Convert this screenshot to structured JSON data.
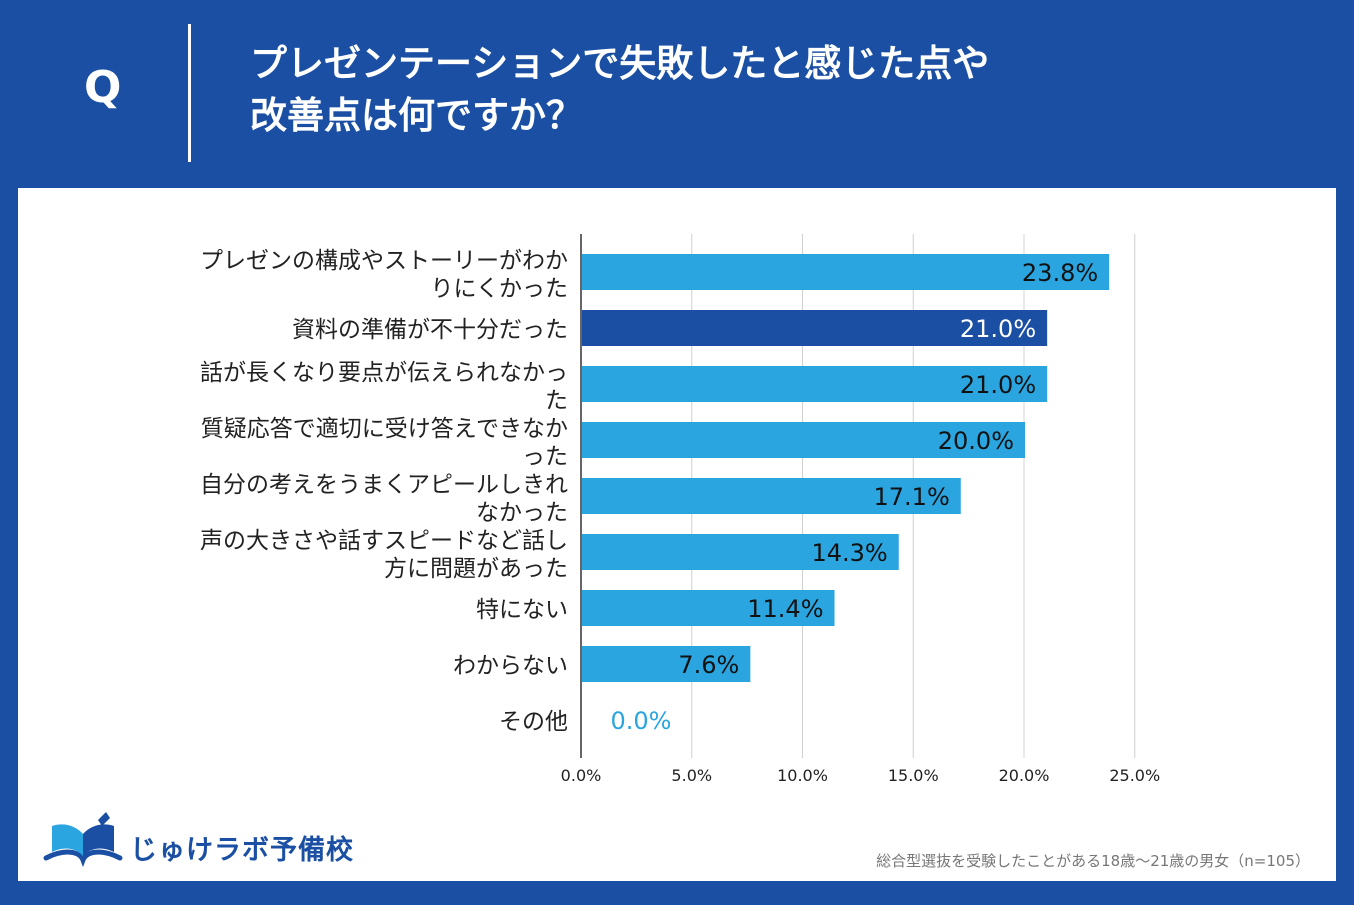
{
  "header": {
    "q_label": "Q",
    "question_line1": "プレゼンテーションで失敗したと感じた点や",
    "question_line2": "改善点は何ですか？"
  },
  "colors": {
    "background": "#1a4fa3",
    "bar_light": "#2aa5e0",
    "bar_highlight": "#1a4fa3",
    "grid": "#d0d0d0"
  },
  "chart_data": {
    "type": "bar",
    "orientation": "horizontal",
    "categories": [
      [
        "プレゼンの構成やストーリーがわか",
        "りにくかった"
      ],
      [
        "資料の準備が不十分だった"
      ],
      [
        "話が長くなり要点が伝えられなかっ",
        "た"
      ],
      [
        "質疑応答で適切に受け答えできなか",
        "った"
      ],
      [
        "自分の考えをうまくアピールしきれ",
        "なかった"
      ],
      [
        "声の大きさや話すスピードなど話し",
        "方に問題があった"
      ],
      [
        "特にない"
      ],
      [
        "わからない"
      ],
      [
        "その他"
      ]
    ],
    "values": [
      23.8,
      21.0,
      21.0,
      20.0,
      17.1,
      14.3,
      11.4,
      7.6,
      0.0
    ],
    "value_labels": [
      "23.8%",
      "21.0%",
      "21.0%",
      "20.0%",
      "17.1%",
      "14.3%",
      "11.4%",
      "7.6%",
      "0.0%"
    ],
    "highlight_index": 1,
    "x_ticks": [
      0,
      5,
      10,
      15,
      20,
      25
    ],
    "x_tick_labels": [
      "0.0%",
      "5.0%",
      "10.0%",
      "15.0%",
      "20.0%",
      "25.0%"
    ],
    "xlim": [
      0,
      25
    ],
    "grid": true
  },
  "footer": {
    "logo_text": "じゅけラボ予備校",
    "note": "総合型選抜を受験したことがある18歳～21歳の男女（n=105）"
  }
}
